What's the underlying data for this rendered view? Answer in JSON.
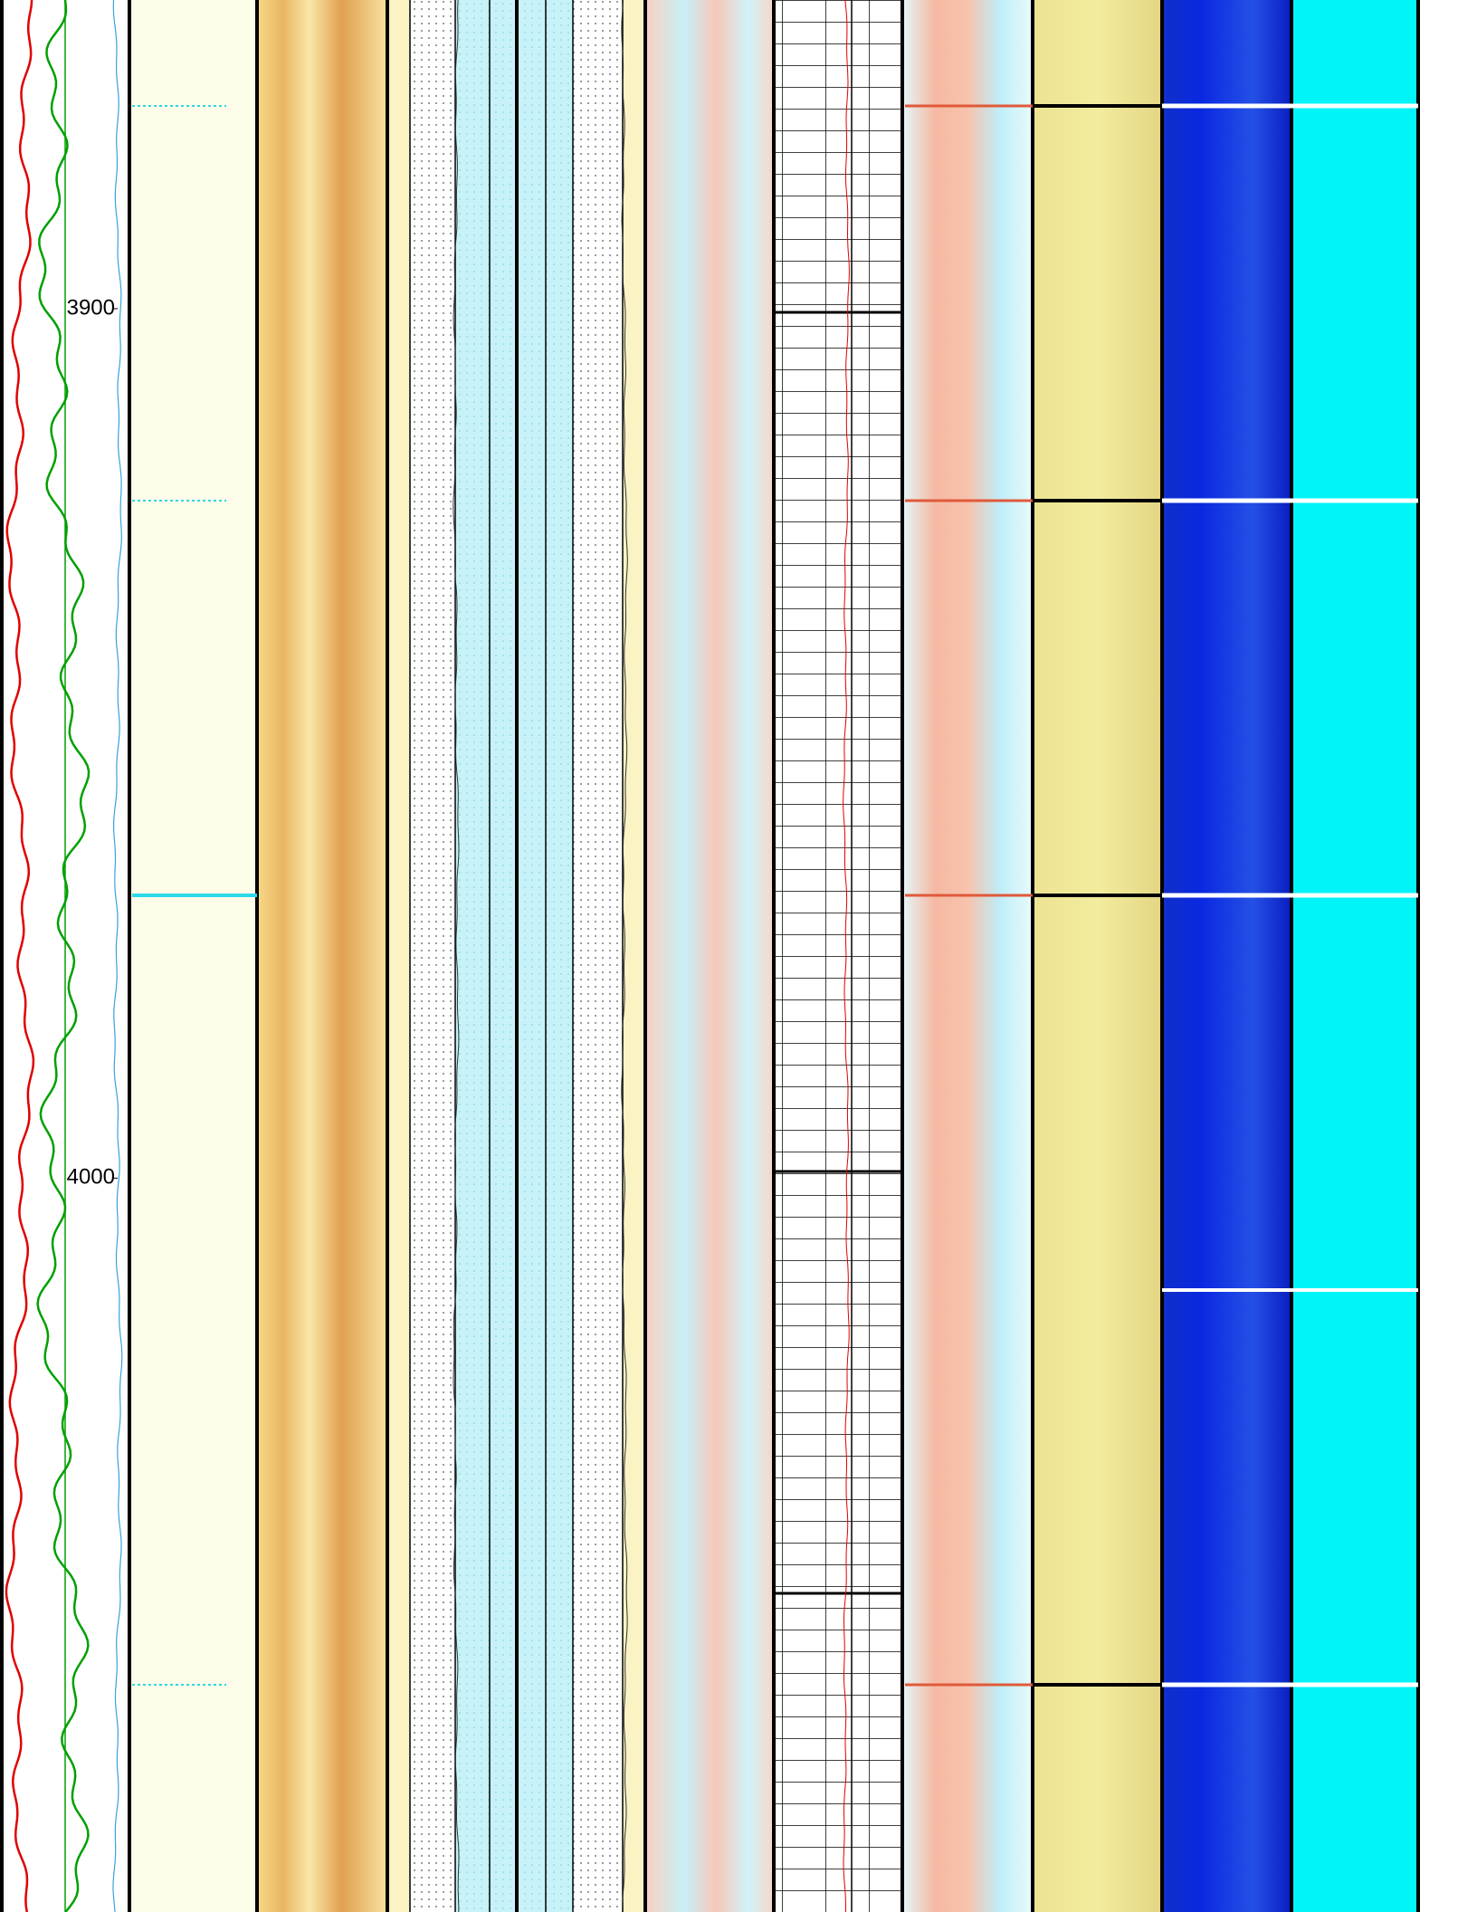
{
  "chart_data": {
    "type": "well-log",
    "ylim": [
      3864.5,
      4084.4
    ],
    "yticks": [
      3900,
      4000
    ]
  }
}
